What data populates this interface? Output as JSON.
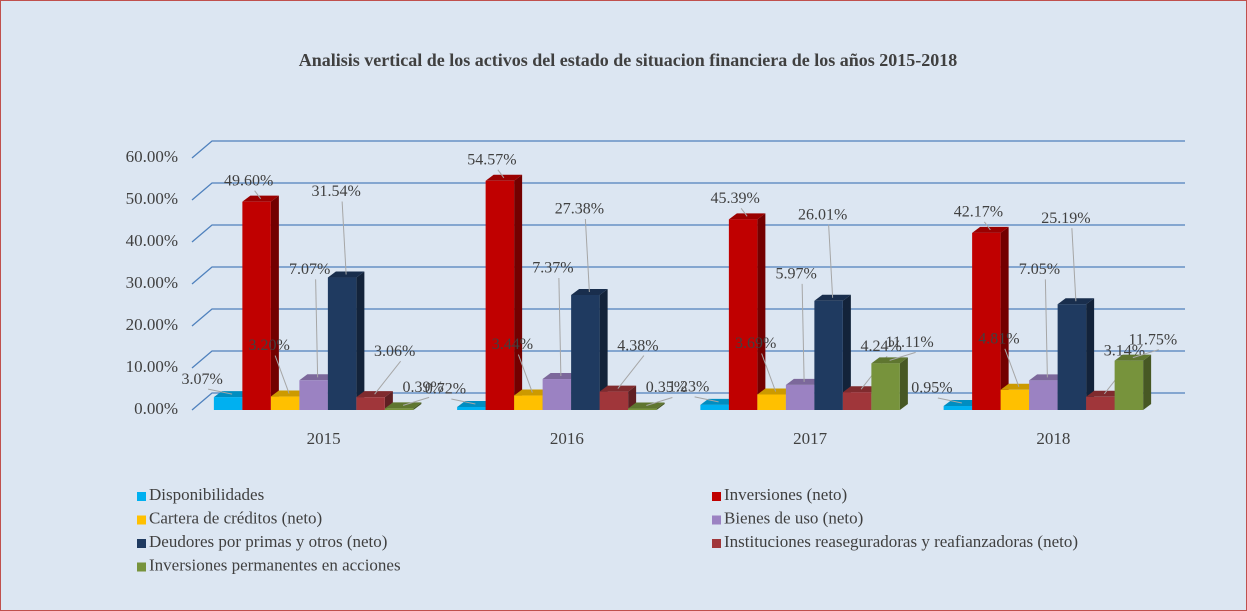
{
  "chart_data": {
    "type": "bar3d",
    "title": "Analisis vertical de los activos del estado de situacion financiera de los años 2015-2018",
    "categories": [
      "2015",
      "2016",
      "2017",
      "2018"
    ],
    "ylim": [
      0,
      60
    ],
    "yticks": [
      {
        "value": 0,
        "label": "0.00%"
      },
      {
        "value": 10,
        "label": "10.00%"
      },
      {
        "value": 20,
        "label": "20.00%"
      },
      {
        "value": 30,
        "label": "30.00%"
      },
      {
        "value": 40,
        "label": "40.00%"
      },
      {
        "value": 50,
        "label": "50.00%"
      },
      {
        "value": 60,
        "label": "60.00%"
      }
    ],
    "grid": true,
    "legend": "bottom",
    "series": [
      {
        "name": "Disponibilidades",
        "color": "#00b0f0",
        "values": [
          3.07,
          0.72,
          1.23,
          0.95
        ],
        "value_labels": [
          "3.07%",
          "0.72%",
          "1.23%",
          "0.95%"
        ]
      },
      {
        "name": "Inversiones (neto)",
        "color": "#c00000",
        "values": [
          49.6,
          54.57,
          45.39,
          42.17
        ],
        "value_labels": [
          "49.60%",
          "54.57%",
          "45.39%",
          "42.17%"
        ]
      },
      {
        "name": "Cartera de créditos (neto)",
        "color": "#ffc000",
        "values": [
          3.2,
          3.44,
          3.69,
          4.81
        ],
        "value_labels": [
          "3.20%",
          "3.44%",
          "3.69%",
          "4.81%"
        ]
      },
      {
        "name": "Bienes de uso (neto)",
        "color": "#9b82c2",
        "values": [
          7.07,
          7.37,
          5.97,
          7.05
        ],
        "value_labels": [
          "7.07%",
          "7.37%",
          "5.97%",
          "7.05%"
        ]
      },
      {
        "name": "Deudores por primas y otros (neto)",
        "color": "#1f3a60",
        "values": [
          31.54,
          27.38,
          26.01,
          25.19
        ],
        "value_labels": [
          "31.54%",
          "27.38%",
          "26.01%",
          "25.19%"
        ]
      },
      {
        "name": "Instituciones reaseguradoras y reafianzadoras (neto)",
        "color": "#a0363a",
        "values": [
          3.06,
          4.38,
          4.24,
          3.14
        ],
        "value_labels": [
          "3.06%",
          "4.38%",
          "4.24%",
          "3.14%"
        ]
      },
      {
        "name": "Inversiones permanentes en acciones",
        "color": "#77933c",
        "values": [
          0.39,
          0.35,
          11.11,
          11.75
        ],
        "value_labels": [
          "0.39%",
          "0.35%",
          "11.11%",
          "11.75%"
        ]
      }
    ]
  }
}
